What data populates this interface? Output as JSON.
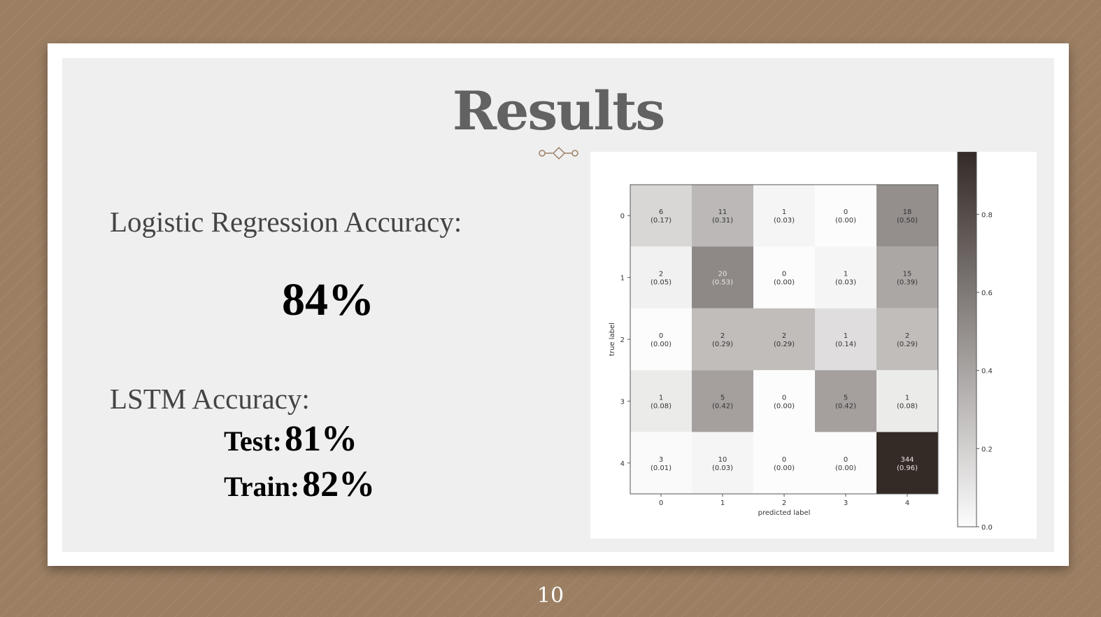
{
  "slide": {
    "title": "Results",
    "page_number": "10"
  },
  "logistic": {
    "label": "Logistic Regression Accuracy:",
    "value": "84%"
  },
  "lstm": {
    "label": "LSTM Accuracy:",
    "test_label": "Test:",
    "test_value": "81%",
    "train_label": "Train:",
    "train_value": "82%"
  },
  "colors": {
    "background": "#9c7f63",
    "slide": "#efefef",
    "title": "#626262",
    "ornament": "#9c7f63"
  },
  "chart_data": {
    "type": "heatmap",
    "xlabel": "predicted label",
    "ylabel": "true label",
    "x_ticks": [
      "0",
      "1",
      "2",
      "3",
      "4"
    ],
    "y_ticks": [
      "0",
      "1",
      "2",
      "3",
      "4"
    ],
    "counts": [
      [
        6,
        11,
        1,
        0,
        18
      ],
      [
        2,
        20,
        0,
        1,
        15
      ],
      [
        0,
        2,
        2,
        1,
        2
      ],
      [
        1,
        5,
        0,
        5,
        1
      ],
      [
        3,
        10,
        0,
        0,
        344
      ]
    ],
    "normalized": [
      [
        "0.17",
        "0.31",
        "0.03",
        "0.00",
        "0.50"
      ],
      [
        "0.05",
        "0.53",
        "0.00",
        "0.03",
        "0.39"
      ],
      [
        "0.00",
        "0.29",
        "0.29",
        "0.14",
        "0.29"
      ],
      [
        "0.08",
        "0.42",
        "0.00",
        "0.42",
        "0.08"
      ],
      [
        "0.01",
        "0.03",
        "0.00",
        "0.00",
        "0.96"
      ]
    ],
    "colorbar": {
      "ticks": [
        "0.0",
        "0.2",
        "0.4",
        "0.6",
        "0.8"
      ],
      "range": [
        0,
        0.96
      ],
      "colormap": "greys-brown"
    },
    "grid": false
  }
}
